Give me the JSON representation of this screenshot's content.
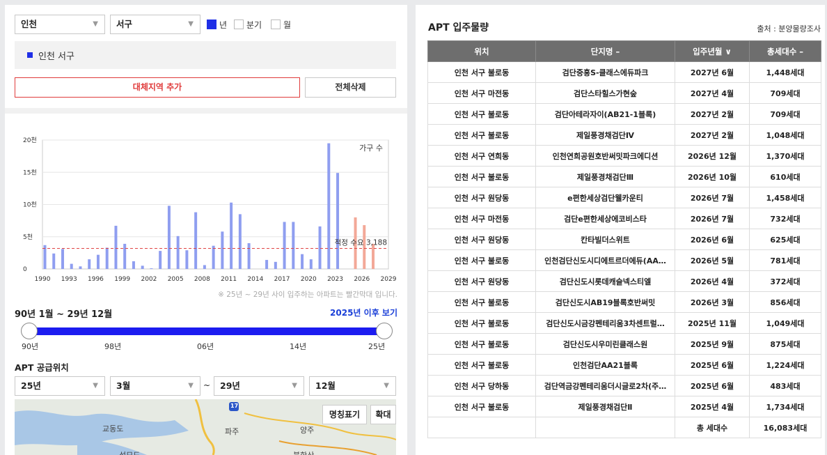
{
  "filters": {
    "region": "인천",
    "district": "서구",
    "period_options": [
      {
        "label": "년",
        "checked": true
      },
      {
        "label": "분기",
        "checked": false
      },
      {
        "label": "월",
        "checked": false
      }
    ]
  },
  "selected_region": "인천 서구",
  "buttons": {
    "add_region": "대체지역 추가",
    "delete_all": "전체삭제"
  },
  "chart_data": {
    "type": "bar",
    "y_ticks": [
      "0",
      "5천",
      "10천",
      "15천",
      "20천"
    ],
    "x_ticks": [
      "1990",
      "1993",
      "1996",
      "1999",
      "2002",
      "2005",
      "2008",
      "2011",
      "2014",
      "2017",
      "2020",
      "2023",
      "2026",
      "2029"
    ],
    "ylim": [
      0,
      20000
    ],
    "legend_label": "가구 수",
    "reference_line": {
      "label": "적정 수요 3,188",
      "value": 3188
    },
    "categories": [
      1990,
      1991,
      1992,
      1993,
      1994,
      1995,
      1996,
      1997,
      1998,
      1999,
      2000,
      2001,
      2002,
      2003,
      2004,
      2005,
      2006,
      2007,
      2008,
      2009,
      2010,
      2011,
      2012,
      2013,
      2014,
      2015,
      2016,
      2017,
      2018,
      2019,
      2020,
      2021,
      2022,
      2023,
      2024,
      2025,
      2026,
      2027
    ],
    "values": [
      3700,
      2400,
      3100,
      800,
      400,
      1500,
      2200,
      3300,
      6700,
      3900,
      1200,
      500,
      100,
      2800,
      9800,
      5100,
      2900,
      8800,
      600,
      3600,
      5800,
      10300,
      8500,
      4000,
      0,
      1400,
      1100,
      7300,
      7300,
      2300,
      1500,
      6600,
      19500,
      14900,
      0,
      8000,
      6800,
      3900
    ],
    "highlight_from": 2025,
    "colors": {
      "normal": "#8f9ef0",
      "highlight": "#f3a898",
      "reference": "#e04444"
    }
  },
  "chart_note": "※ 25년 ~ 29년 사이 입주하는 아파트는 빨간막대 입니다.",
  "range": {
    "label": "90년 1월 ~ 29년 12월",
    "after_link": "2025년 이후 보기",
    "ticks": [
      "90년",
      "98년",
      "06년",
      "14년",
      "25년"
    ]
  },
  "supply": {
    "title": "APT 공급위치",
    "from_year": "25년",
    "from_month": "3월",
    "sep": "~",
    "to_year": "29년",
    "to_month": "12월"
  },
  "map": {
    "name_button": "명칭표기",
    "zoom_button": "확대",
    "labels": [
      "교동도",
      "파주",
      "양주",
      "석모도",
      "북한산"
    ],
    "road_number": "17"
  },
  "table": {
    "title": "APT 입주물량",
    "source": "출처 : 분양물량조사",
    "headers": [
      "위치",
      "단지명 –",
      "입주년월 ∨",
      "총세대수 –"
    ],
    "rows": [
      [
        "인천 서구 불로동",
        "검단중흥S-클래스에듀파크",
        "2027년 6월",
        "1,448세대"
      ],
      [
        "인천 서구 마전동",
        "검단스타힐스가현숲",
        "2027년 4월",
        "709세대"
      ],
      [
        "인천 서구 불로동",
        "검단아테라자이(AB21-1블록)",
        "2027년 2월",
        "709세대"
      ],
      [
        "인천 서구 불로동",
        "제일풍경채검단Ⅳ",
        "2027년 2월",
        "1,048세대"
      ],
      [
        "인천 서구 연희동",
        "인천연희공원호반써밋파크에디션",
        "2026년 12월",
        "1,370세대"
      ],
      [
        "인천 서구 불로동",
        "제일풍경채검단Ⅲ",
        "2026년 10월",
        "610세대"
      ],
      [
        "인천 서구 원당동",
        "e편한세상검단웰카운티",
        "2026년 7월",
        "1,458세대"
      ],
      [
        "인천 서구 마전동",
        "검단e편한세상에코비스타",
        "2026년 7월",
        "732세대"
      ],
      [
        "인천 서구 원당동",
        "칸타빌더스위트",
        "2026년 6월",
        "625세대"
      ],
      [
        "인천 서구 불로동",
        "인천검단신도시디에트르더에듀(AA…",
        "2026년 5월",
        "781세대"
      ],
      [
        "인천 서구 원당동",
        "검단신도시롯데캐슬넥스티엘",
        "2026년 4월",
        "372세대"
      ],
      [
        "인천 서구 불로동",
        "검단신도시AB19블록호반써밋",
        "2026년 3월",
        "856세대"
      ],
      [
        "인천 서구 불로동",
        "검단신도시금강펜테리움3차센트럴…",
        "2025년 11월",
        "1,049세대"
      ],
      [
        "인천 서구 불로동",
        "검단신도시우미린클래스원",
        "2025년 9월",
        "875세대"
      ],
      [
        "인천 서구 불로동",
        "인천검단AA21블록",
        "2025년 6월",
        "1,224세대"
      ],
      [
        "인천 서구 당하동",
        "검단역금강펜테리움더시글로2차(주…",
        "2025년 6월",
        "483세대"
      ],
      [
        "인천 서구 불로동",
        "제일풍경채검단Ⅱ",
        "2025년 4월",
        "1,734세대"
      ]
    ],
    "total_label": "총 세대수",
    "total_value": "16,083세대"
  }
}
